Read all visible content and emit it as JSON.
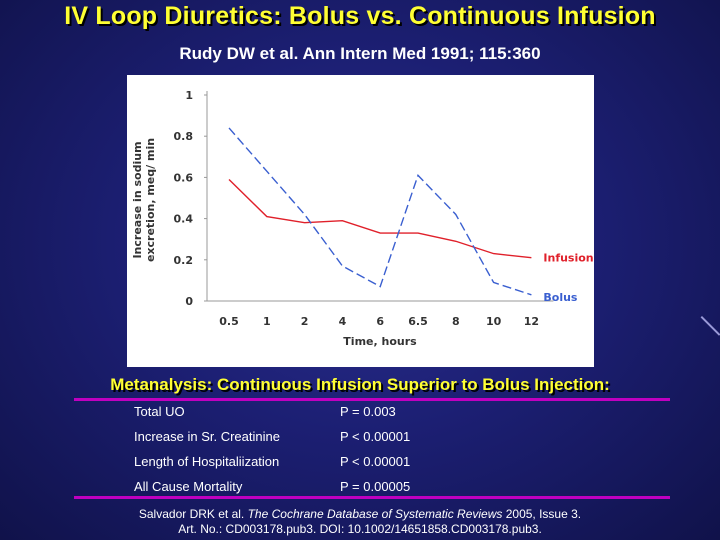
{
  "title": "IV Loop Diuretics: Bolus vs. Continuous Infusion",
  "citation": "Rudy DW et al. Ann Intern Med 1991; 115:360",
  "chart_data": {
    "type": "line",
    "title": "",
    "xlabel": "Time, hours",
    "ylabel": [
      "Increase in sodium",
      "excretion, meq/ min"
    ],
    "categories": [
      "0.5",
      "1",
      "2",
      "4",
      "6",
      "6.5",
      "8",
      "10",
      "12"
    ],
    "ylim": [
      0,
      1
    ],
    "yticks": [
      "1",
      "0.8",
      "0.6",
      "0.4",
      "0.2",
      "0"
    ],
    "grid": false,
    "series": [
      {
        "name": "Infusion",
        "color": "#e0202a",
        "dash": false,
        "values": [
          0.59,
          0.41,
          0.38,
          0.39,
          0.33,
          0.33,
          0.29,
          0.23,
          0.21
        ]
      },
      {
        "name": "Bolus",
        "color": "#3a5fd0",
        "dash": true,
        "values": [
          0.84,
          0.63,
          0.42,
          0.17,
          0.07,
          0.61,
          0.42,
          0.09,
          0.03
        ]
      }
    ]
  },
  "subtitle": "Metanalysis: Continuous Infusion Superior to Bolus Injection:",
  "results": [
    {
      "label": "Total UO",
      "value": "P = 0.003"
    },
    {
      "label": "Increase in Sr. Creatinine",
      "value": "P < 0.00001"
    },
    {
      "label": "Length of Hospitaliization",
      "value": "P < 0.00001"
    },
    {
      "label": "All Cause Mortality",
      "value": "P = 0.00005"
    }
  ],
  "reference": {
    "authors": "Salvador DRK et al. ",
    "journal": "The Cochrane Database of Systematic Reviews",
    "rest": " 2005, Issue 3.",
    "line2": "Art. No.: CD003178.pub3. DOI: 10.1002/14651858.CD003178.pub3."
  },
  "colors": {
    "title": "#ffff33",
    "rule": "#c000c0",
    "background": "#1c1f73"
  }
}
